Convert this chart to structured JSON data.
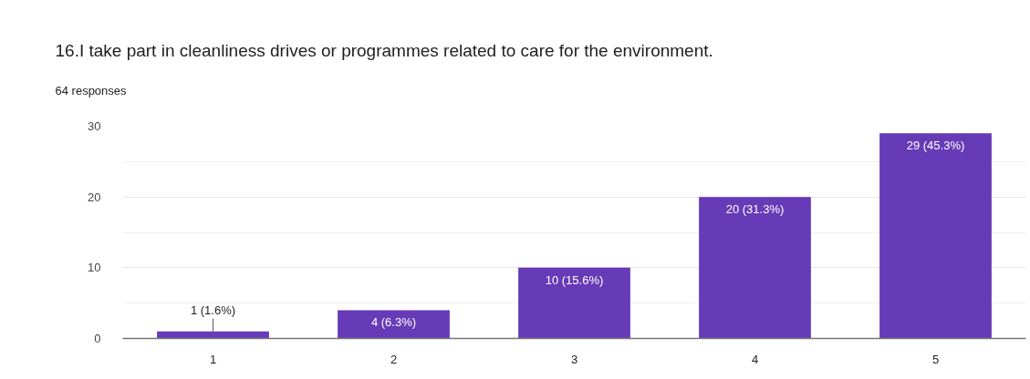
{
  "chart_data": {
    "type": "bar",
    "title": "16.I take part in cleanliness drives or programmes related to care for the environment.",
    "subtitle": "64 responses",
    "categories": [
      "1",
      "2",
      "3",
      "4",
      "5"
    ],
    "values": [
      1,
      4,
      10,
      20,
      29
    ],
    "value_labels": [
      "1 (1.6%)",
      "4 (6.3%)",
      "10 (15.6%)",
      "20 (31.3%)",
      "29 (45.3%)"
    ],
    "color": "#673ab7",
    "ylim": [
      0,
      30
    ],
    "yticks": [
      0,
      {
        "value": 5,
        "label": null
      },
      10,
      {
        "value": 15,
        "label": null
      },
      20,
      {
        "value": 25,
        "label": null
      },
      30
    ],
    "grid": "y"
  }
}
